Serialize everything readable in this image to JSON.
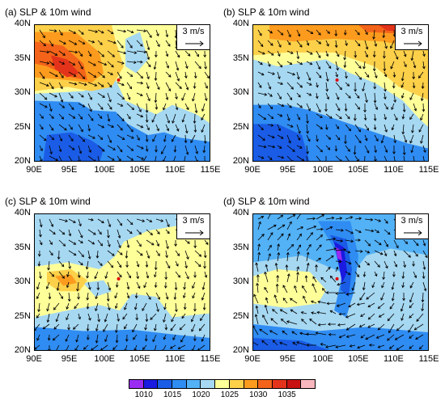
{
  "panels": [
    {
      "title": "(a) SLP & 10m wind",
      "variant": 0
    },
    {
      "title": "(b) SLP & 10m wind",
      "variant": 1
    },
    {
      "title": "(c) SLP & 10m wind",
      "variant": 2
    },
    {
      "title": "(d) SLP & 10m wind",
      "variant": 3
    }
  ],
  "reference_vector": "3 m/s",
  "lat_labels": [
    "40N",
    "35N",
    "30N",
    "25N",
    "20N"
  ],
  "lon_labels": [
    "90E",
    "95E",
    "100E",
    "105E",
    "110E",
    "115E"
  ],
  "colorbar": {
    "colors": [
      "#9a2bf0",
      "#1a1ae0",
      "#1a5ce6",
      "#2f8cf2",
      "#53b1f6",
      "#a6d8f2",
      "#ffff9a",
      "#fdd04a",
      "#fd9b1e",
      "#f3641a",
      "#e3331a",
      "#c81212",
      "#f7b7bd"
    ],
    "labels": [
      "1010",
      "1015",
      "1020",
      "1025",
      "1030",
      "1035"
    ]
  },
  "marker_color": "#e00000"
}
